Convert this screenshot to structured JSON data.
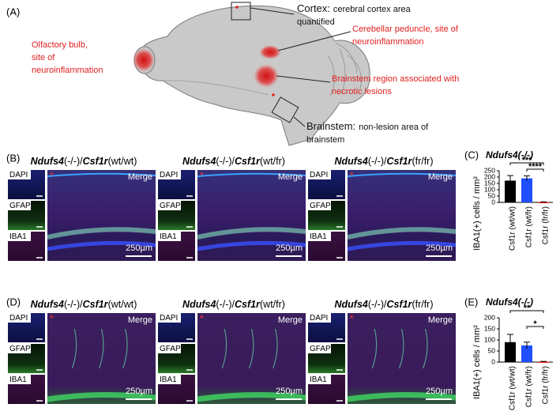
{
  "panel_a": {
    "label": "(A)",
    "annotations": [
      {
        "lines": [
          "Olfactory bulb,",
          "site of",
          "neuroinflammation"
        ]
      },
      {
        "title": "Cortex:",
        "lines": [
          "cerebral cortex area",
          "quantified"
        ]
      },
      {
        "lines": [
          "Cerebellar peduncle, site of",
          "neuroinflammation"
        ]
      },
      {
        "lines": [
          "Brainstem region associated with",
          "necrotic lesions"
        ]
      },
      {
        "title": "Brainstem:",
        "lines": [
          "non-lesion area of",
          "brainstem"
        ]
      }
    ]
  },
  "panel_b": {
    "label": "(B)",
    "groups": [
      {
        "header": [
          "Ndufs4",
          "(-/-)/",
          "Csf1r",
          "(wt/wt)"
        ],
        "channels": [
          "DAPI",
          "GFAP",
          "IBA1"
        ],
        "merge": "Merge",
        "scale_bar": "250µm",
        "marker": "*"
      },
      {
        "header": [
          "Ndufs4",
          "(-/-)/",
          "Csf1r",
          "(wt/fr)"
        ],
        "channels": [
          "DAPI",
          "GFAP",
          "IBA1"
        ],
        "merge": "Merge",
        "scale_bar": "250µm",
        "marker": "*"
      },
      {
        "header": [
          "Ndufs4",
          "(-/-)/",
          "Csf1r",
          "(fr/fr)"
        ],
        "channels": [
          "DAPI",
          "GFAP",
          "IBA1"
        ],
        "merge": "Merge",
        "scale_bar": "250µm",
        "marker": "*"
      }
    ]
  },
  "panel_d": {
    "label": "(D)",
    "groups": [
      {
        "header": [
          "Ndufs4",
          "(-/-)/",
          "Csf1r",
          "(wt/wt)"
        ],
        "channels": [
          "DAPI",
          "GFAP",
          "IBA1"
        ],
        "merge": "Merge",
        "scale_bar": "250µm",
        "marker": "*"
      },
      {
        "header": [
          "Ndufs4",
          "(-/-)/",
          "Csf1r",
          "(wt/fr)"
        ],
        "channels": [
          "DAPI",
          "GFAP",
          "IBA1"
        ],
        "merge": "Merge",
        "scale_bar": "250µm",
        "marker": "*"
      },
      {
        "header": [
          "Ndufs4",
          "(-/-)/",
          "Csf1r",
          "(fr/fr)"
        ],
        "channels": [
          "DAPI",
          "GFAP",
          "IBA1"
        ],
        "merge": "Merge",
        "scale_bar": "250µm",
        "marker": "*"
      }
    ]
  },
  "chart_data": [
    {
      "type": "bar",
      "panel_label": "(C)",
      "title": "Ndufs4(-/-)",
      "y_label": "IBA1(+) cells / mm²",
      "categories": [
        "Csf1r (wt/wt)",
        "Csf1r (wt/fr)",
        "Csf1r (fr/fr)"
      ],
      "values": [
        172,
        190,
        3
      ],
      "errors": [
        40,
        20,
        1
      ],
      "colors": [
        "#000000",
        "#1f4fff",
        "#e8201a"
      ],
      "ylim": [
        0,
        250
      ],
      "yticks": [
        0,
        50,
        100,
        150,
        200,
        250
      ],
      "significance": [
        "***",
        "****"
      ]
    },
    {
      "type": "bar",
      "panel_label": "(E)",
      "title": "Ndufs4(-/-)",
      "y_label": "IBA1(+) cells / mm²",
      "categories": [
        "Csf1r (wt/wt)",
        "Csf1r (wt/fr)",
        "Csf1r (fr/fr)"
      ],
      "values": [
        90,
        75,
        2
      ],
      "errors": [
        35,
        15,
        1
      ],
      "colors": [
        "#000000",
        "#1f4fff",
        "#e8201a"
      ],
      "ylim": [
        0,
        200
      ],
      "yticks": [
        0,
        50,
        100,
        150,
        200
      ],
      "significance": [
        "**",
        "*"
      ]
    }
  ]
}
